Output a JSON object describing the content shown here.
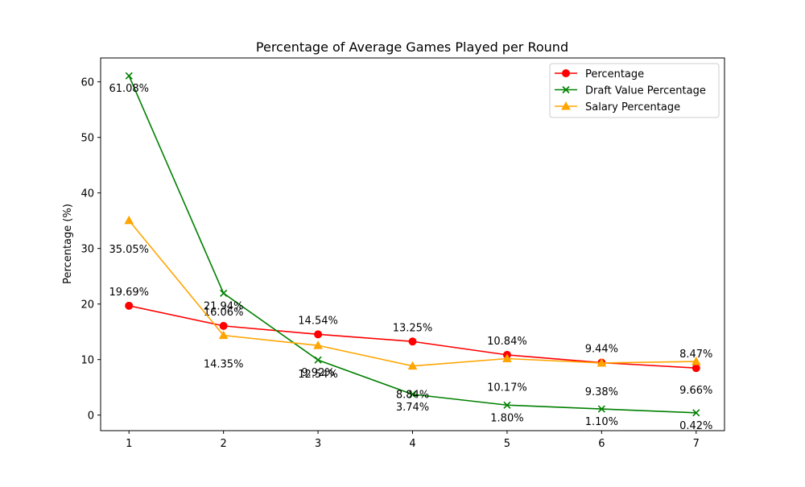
{
  "chart_data": {
    "type": "line",
    "title": "Percentage of Average Games Played per Round",
    "xlabel": "",
    "ylabel": "Percentage (%)",
    "x": [
      1,
      2,
      3,
      4,
      5,
      6,
      7
    ],
    "x_tick_labels": [
      "1",
      "2",
      "3",
      "4",
      "5",
      "6",
      "7"
    ],
    "xlim": [
      0.7,
      7.3
    ],
    "ylim": [
      -2.8,
      64.3
    ],
    "y_ticks": [
      0,
      10,
      20,
      30,
      40,
      50,
      60
    ],
    "y_tick_labels": [
      "0",
      "10",
      "20",
      "30",
      "40",
      "50",
      "60"
    ],
    "grid": false,
    "legend_position": "top-right",
    "series": [
      {
        "name": "Percentage",
        "color": "#ff0000",
        "marker": "circle",
        "values": [
          19.69,
          16.06,
          14.54,
          13.25,
          10.84,
          9.44,
          8.47
        ],
        "labels": [
          "19.69%",
          "16.06%",
          "14.54%",
          "13.25%",
          "10.84%",
          "9.44%",
          "8.47%"
        ]
      },
      {
        "name": "Draft Value Percentage",
        "color": "#008000",
        "marker": "x",
        "values": [
          61.08,
          21.94,
          9.92,
          3.74,
          1.8,
          1.1,
          0.42
        ],
        "labels": [
          "61.08%",
          "21.94%",
          "9.92%",
          "3.74%",
          "1.80%",
          "1.10%",
          "0.42%"
        ]
      },
      {
        "name": "Salary Percentage",
        "color": "#ffa500",
        "marker": "triangle",
        "values": [
          35.05,
          14.35,
          12.54,
          8.84,
          10.17,
          9.38,
          9.66
        ],
        "labels": [
          "35.05%",
          "14.35%",
          "12.54%",
          "8.84%",
          "10.17%",
          "9.38%",
          "9.66%"
        ]
      }
    ]
  }
}
